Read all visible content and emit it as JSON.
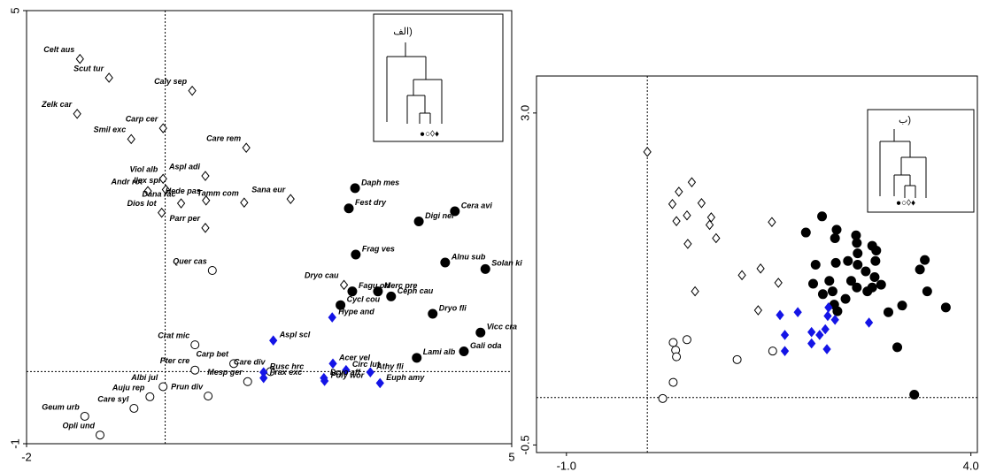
{
  "chart_data": [
    {
      "type": "scatter",
      "xlim": [
        -2,
        5
      ],
      "ylim": [
        -1,
        5
      ],
      "xticks": [
        -2,
        5
      ],
      "yticks": [
        -1,
        5
      ],
      "ref_x": 0,
      "ref_y": 0,
      "inset": {
        "title": "الف)",
        "symbols": "●○◊♦"
      },
      "series": [
        {
          "marker": "open-diamond",
          "color": "#000000",
          "labels": [
            "Celt aus",
            "Scut tur",
            "Caly sep",
            "Zelk car",
            "Carp cer",
            "Smil exc",
            "Care rem",
            "Viol alb",
            "Aspl adi",
            "Andr rot",
            "Ilex spi",
            "Hede pas",
            "Sana eur",
            "Dana rac",
            "Tamm com",
            "Dios lot",
            "Parr per",
            "Dryo cau"
          ],
          "x": [
            -1.23,
            -0.81,
            0.39,
            -1.27,
            -0.03,
            -0.49,
            1.17,
            -0.03,
            0.58,
            -0.25,
            0.01,
            0.59,
            1.81,
            0.23,
            1.14,
            -0.05,
            0.58,
            2.58
          ],
          "y": [
            4.33,
            4.07,
            3.89,
            3.57,
            3.37,
            3.22,
            3.1,
            2.67,
            2.71,
            2.5,
            2.52,
            2.37,
            2.39,
            2.33,
            2.34,
            2.2,
            1.99,
            1.2
          ]
        },
        {
          "marker": "open-circle",
          "color": "#000000",
          "labels": [
            "Quer cas",
            "Crat mic",
            "Carp bet",
            "Pter cre",
            "Care div",
            "Albi jul",
            "Mesp ger",
            "Auju rep",
            "Prun div",
            "Care syl",
            "Geum urb",
            "Opli und"
          ],
          "x": [
            0.68,
            0.43,
            0.99,
            0.43,
            1.52,
            -0.03,
            1.19,
            -0.22,
            0.62,
            -0.45,
            -1.16,
            -0.94
          ],
          "y": [
            1.4,
            0.37,
            0.11,
            0.02,
            0.0,
            -0.21,
            -0.14,
            -0.35,
            -0.34,
            -0.51,
            -0.62,
            -0.88
          ]
        },
        {
          "marker": "filled-circle",
          "color": "#000000",
          "labels": [
            "Daph mes",
            "Fest dry",
            "Cera avi",
            "Digi ner",
            "Frag ves",
            "Alnu sub",
            "Solan ki",
            "Merc pre",
            "Fagu ori",
            "Ceph cau",
            "Cycl cou",
            "Dryo fli",
            "Vicc cra",
            "Lami alb",
            "Gali oda"
          ],
          "x": [
            2.74,
            2.65,
            4.18,
            3.66,
            2.75,
            4.04,
            4.62,
            3.07,
            2.7,
            3.26,
            2.53,
            3.86,
            4.55,
            3.63,
            4.31
          ],
          "y": [
            2.54,
            2.26,
            2.22,
            2.08,
            1.62,
            1.51,
            1.42,
            1.11,
            1.11,
            1.04,
            0.92,
            0.8,
            0.54,
            0.19,
            0.28
          ]
        },
        {
          "marker": "filled-diamond",
          "color": "#1414e6",
          "labels": [
            "Hype and",
            "Aspl scl",
            "Acer vel",
            "Circ lut",
            "Athy fli",
            "Rusc hrc",
            "Frax exc",
            "Dryo aff",
            "Poly wor",
            "Euph amy"
          ],
          "x": [
            2.41,
            1.56,
            2.42,
            2.61,
            2.96,
            1.42,
            1.42,
            2.29,
            2.3,
            3.1
          ],
          "y": [
            0.75,
            0.43,
            0.11,
            0.02,
            -0.01,
            -0.01,
            -0.09,
            -0.09,
            -0.13,
            -0.16
          ]
        }
      ]
    },
    {
      "type": "scatter",
      "xlim": [
        -1.37,
        4.08
      ],
      "ylim": [
        -0.58,
        3.39
      ],
      "xticks": [
        {
          "value": -1,
          "label": "-1.0"
        },
        {
          "value": 4,
          "label": "4.0"
        }
      ],
      "yticks": [
        {
          "value": -0.5,
          "label": "-0.5"
        },
        {
          "value": 3,
          "label": "3.0"
        }
      ],
      "ref_x": 0,
      "ref_y": 0,
      "inset": {
        "title": "ب)",
        "symbols": "●○◊♦"
      },
      "series": [
        {
          "marker": "open-diamond",
          "color": "#000000",
          "x": [
            0,
            0.55,
            0.39,
            0.31,
            0.67,
            0.49,
            0.79,
            0.36,
            0.77,
            1.54,
            0.85,
            0.5,
            1.4,
            1.17,
            1.62,
            0.59,
            1.37
          ],
          "y": [
            2.59,
            2.27,
            2.17,
            2.04,
            2.05,
            1.92,
            1.9,
            1.86,
            1.82,
            1.85,
            1.68,
            1.62,
            1.36,
            1.29,
            1.21,
            1.12,
            0.92
          ]
        },
        {
          "marker": "open-circle",
          "color": "#000000",
          "x": [
            0.49,
            0.32,
            0.35,
            0.36,
            1.11,
            1.55,
            0.32,
            0.19
          ],
          "y": [
            0.61,
            0.58,
            0.5,
            0.43,
            0.4,
            0.49,
            0.16,
            -0.01
          ]
        },
        {
          "marker": "filled-circle",
          "color": "#000000",
          "x": [
            2.16,
            1.96,
            2.34,
            2.58,
            2.59,
            2.32,
            2.78,
            2.6,
            2.83,
            3.43,
            2.08,
            2.33,
            2.6,
            2.82,
            2.7,
            2.52,
            2.81,
            3.37,
            2.25,
            2.05,
            2.29,
            2.45,
            2.59,
            2.78,
            2.89,
            2.72,
            3.46,
            3.15,
            2.98,
            2.35,
            2.31,
            3.69,
            3.09,
            3.3,
            2.17,
            2.48
          ],
          "y": [
            1.91,
            1.74,
            1.77,
            1.71,
            1.63,
            1.68,
            1.6,
            1.52,
            1.55,
            1.45,
            1.4,
            1.42,
            1.4,
            1.44,
            1.33,
            1.23,
            1.27,
            1.35,
            1.23,
            1.2,
            1.12,
            1.04,
            1.16,
            1.16,
            1.19,
            1.12,
            1.12,
            0.97,
            0.9,
            0.91,
            0.98,
            0.95,
            0.53,
            0.03,
            1.09,
            1.44
          ]
        },
        {
          "marker": "filled-diamond",
          "color": "#1414e6",
          "x": [
            1.64,
            1.86,
            2.24,
            1.7,
            2.03,
            2.2,
            2.32,
            2.23,
            2.74,
            2.03,
            2.13,
            1.7,
            2.22
          ],
          "y": [
            0.87,
            0.9,
            0.95,
            0.66,
            0.69,
            0.72,
            0.82,
            0.86,
            0.79,
            0.57,
            0.66,
            0.49,
            0.51
          ]
        }
      ]
    }
  ]
}
